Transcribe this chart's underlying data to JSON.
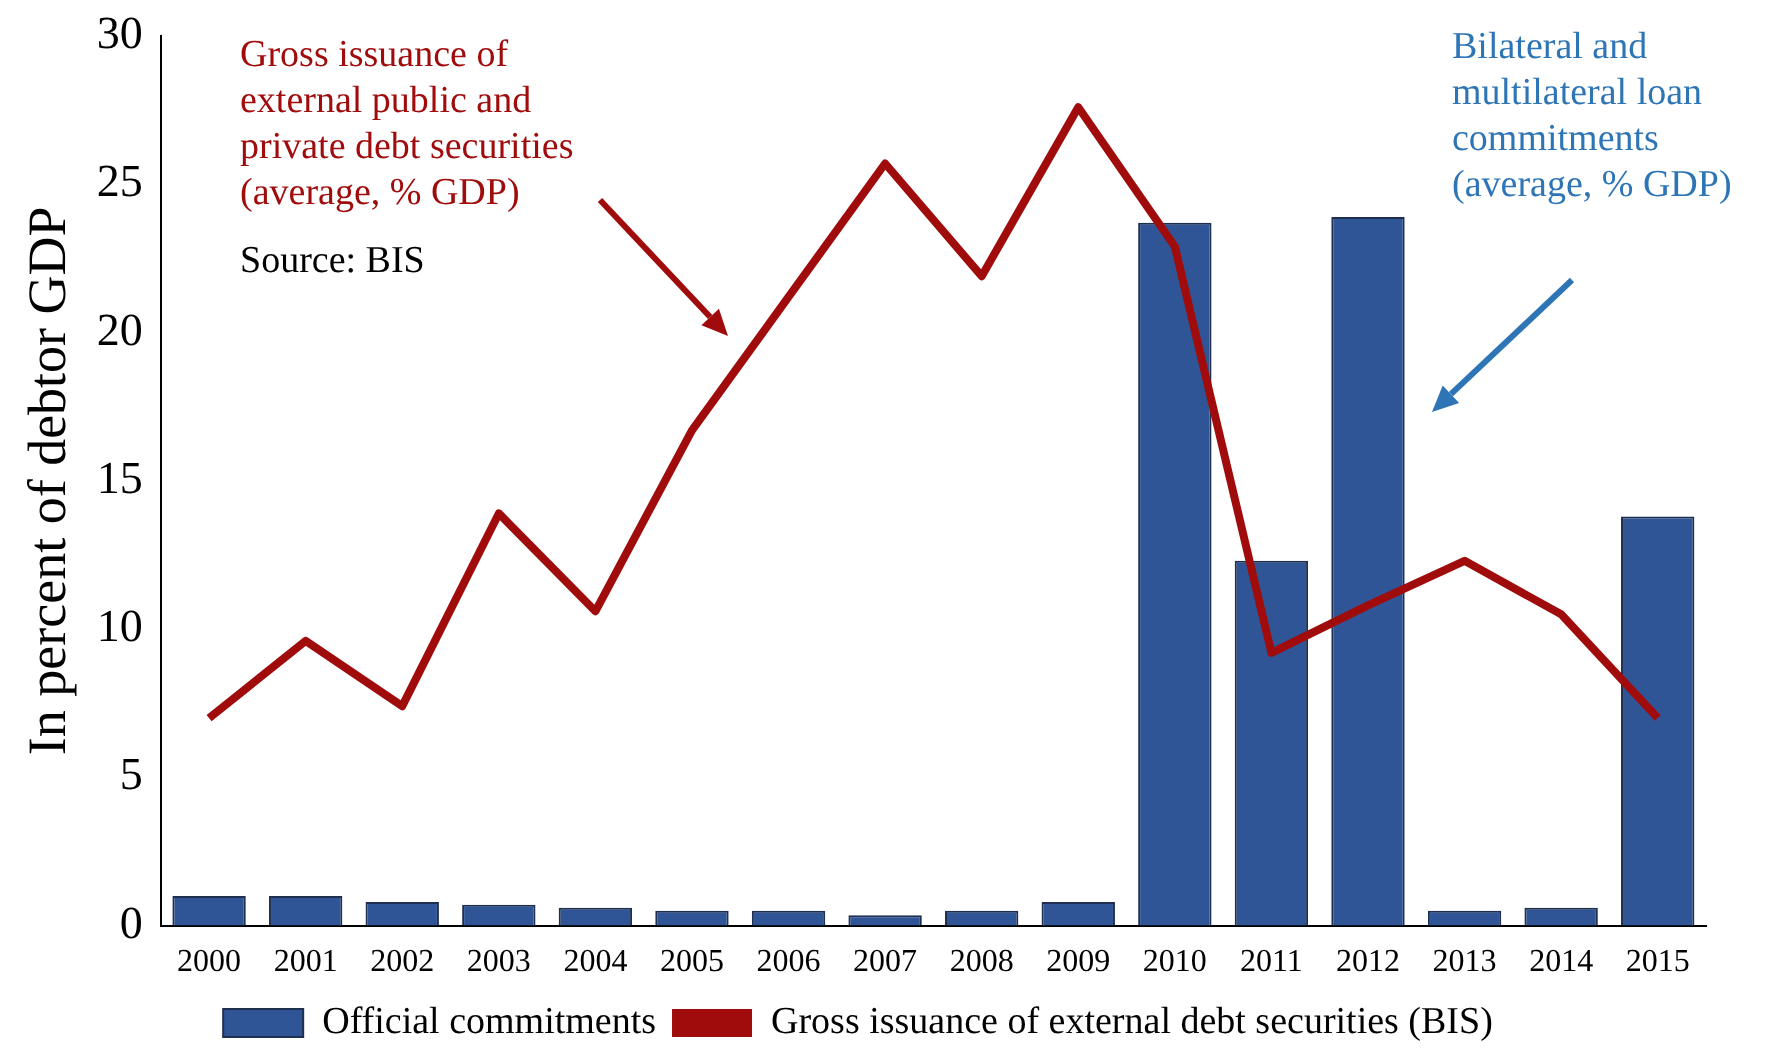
{
  "chart_data": {
    "type": "bar",
    "ylabel": "In percent of debtor GDP",
    "categories": [
      "2000",
      "2001",
      "2002",
      "2003",
      "2004",
      "2005",
      "2006",
      "2007",
      "2008",
      "2009",
      "2010",
      "2011",
      "2012",
      "2013",
      "2014",
      "2015"
    ],
    "series": [
      {
        "name": "Official commitments",
        "color": "#2f5597",
        "values": [
          1.0,
          1.0,
          0.8,
          0.7,
          0.6,
          0.5,
          0.5,
          0.35,
          0.5,
          0.8,
          23.7,
          12.3,
          23.9,
          0.5,
          0.6,
          13.8
        ]
      },
      {
        "name": "Gross issuance of external debt securities (BIS)",
        "type": "line",
        "color": "#a00c0c",
        "values": [
          7.0,
          9.6,
          7.4,
          13.9,
          10.6,
          16.7,
          21.2,
          25.7,
          21.9,
          27.6,
          22.9,
          9.2,
          10.8,
          12.3,
          10.5,
          7.0
        ]
      }
    ],
    "ylim": [
      0,
      30
    ],
    "yticks": [
      0,
      5,
      10,
      15,
      20,
      25,
      30
    ],
    "grid": false,
    "legend": "bottom",
    "marker": "none",
    "line_style": "solid",
    "annotations": [
      "Gross issuance of external public and private debt securities (average, % GDP)",
      "Source: BIS",
      "Bilateral and multilateral loan commitments (average, % GDP)"
    ]
  }
}
